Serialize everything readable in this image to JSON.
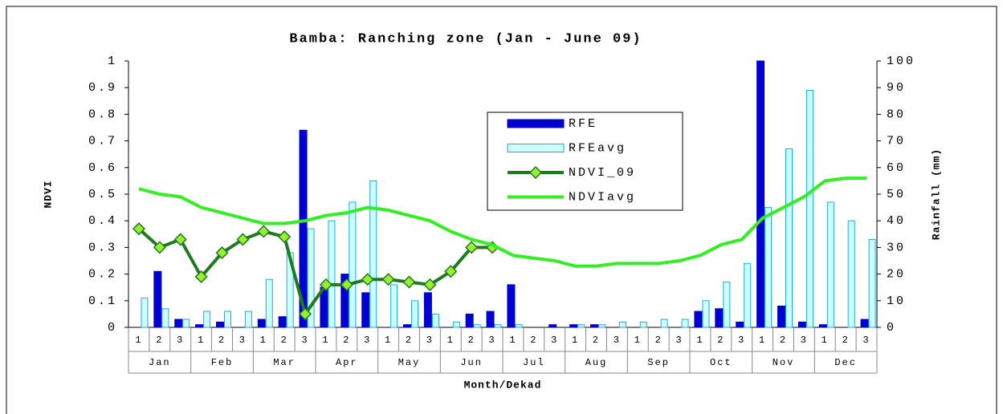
{
  "chart_data": {
    "type": "bar_line",
    "title": "Bamba: Ranching zone (Jan - June 09)",
    "ylabel": "NDVI",
    "y2label": "Rainfall (mm)",
    "xlabel": "Month/Dekad",
    "categories": [
      "1",
      "2",
      "3",
      "1",
      "2",
      "3",
      "1",
      "2",
      "3",
      "1",
      "2",
      "3",
      "1",
      "2",
      "3",
      "1",
      "2",
      "3",
      "1",
      "2",
      "3",
      "1",
      "2",
      "3",
      "1",
      "2",
      "3",
      "1",
      "2",
      "3",
      "1",
      "2",
      "3",
      "1",
      "2",
      "3"
    ],
    "groups": [
      "Jan",
      "Feb",
      "Mar",
      "Apr",
      "May",
      "Jun",
      "Jul",
      "Aug",
      "Sep",
      "Oct",
      "Nov",
      "Dec"
    ],
    "ylim": [
      0,
      1
    ],
    "yticks": [
      0,
      0.1,
      0.2,
      0.3,
      0.4,
      0.5,
      0.6,
      0.7,
      0.8,
      0.9,
      1
    ],
    "y2lim": [
      0,
      100
    ],
    "y2ticks": [
      0,
      10,
      20,
      30,
      40,
      50,
      60,
      70,
      80,
      90,
      100
    ],
    "legend": "upper center",
    "series": [
      {
        "name": "RFE",
        "type": "bar",
        "axis": "y2",
        "color": "#0000d0",
        "edgecolor": "#0000d0",
        "values": [
          0,
          21,
          3,
          1,
          2,
          0,
          3,
          4,
          74,
          15,
          20,
          13,
          0,
          1,
          13,
          0,
          5,
          6,
          16,
          0,
          1,
          1,
          1,
          0,
          0,
          0,
          0,
          6,
          7,
          2,
          100,
          8,
          2,
          1,
          0,
          3
        ]
      },
      {
        "name": "RFEavg",
        "type": "bar",
        "axis": "y2",
        "color": "#ccffff",
        "edgecolor": "#22aadd",
        "values": [
          11,
          7,
          3,
          6,
          6,
          6,
          18,
          28,
          37,
          40,
          47,
          55,
          16,
          10,
          5,
          2,
          1,
          1,
          1,
          0,
          0,
          1,
          1,
          2,
          2,
          3,
          3,
          10,
          17,
          24,
          45,
          67,
          89,
          47,
          40,
          33
        ]
      },
      {
        "name": "NDVI_09",
        "type": "line",
        "axis": "y",
        "color": "#1f7a1f",
        "marker_color": "#99ee33",
        "values": [
          0.37,
          0.3,
          0.33,
          0.19,
          0.28,
          0.33,
          0.36,
          0.34,
          0.05,
          0.16,
          0.16,
          0.18,
          0.18,
          0.17,
          0.16,
          0.21,
          0.3,
          0.3,
          null,
          null,
          null,
          null,
          null,
          null,
          null,
          null,
          null,
          null,
          null,
          null,
          null,
          null,
          null,
          null,
          null,
          null
        ]
      },
      {
        "name": "NDVIavg",
        "type": "line",
        "axis": "y",
        "color": "#33ee22",
        "values": [
          0.52,
          0.5,
          0.49,
          0.45,
          0.43,
          0.41,
          0.39,
          0.39,
          0.4,
          0.42,
          0.43,
          0.45,
          0.44,
          0.42,
          0.4,
          0.36,
          0.33,
          0.31,
          0.27,
          0.26,
          0.25,
          0.23,
          0.23,
          0.24,
          0.24,
          0.24,
          0.25,
          0.27,
          0.31,
          0.33,
          0.41,
          0.45,
          0.49,
          0.55,
          0.56,
          0.56
        ]
      }
    ]
  }
}
